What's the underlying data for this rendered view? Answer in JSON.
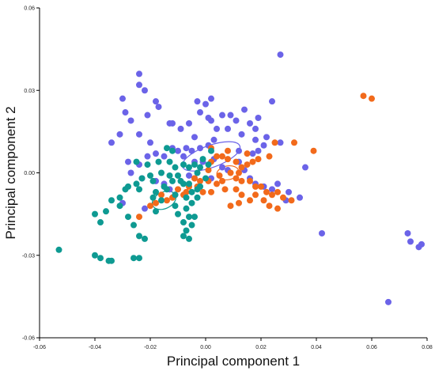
{
  "chart_data": {
    "type": "scatter",
    "xlabel": "Principal component 1",
    "ylabel": "Principal component 2",
    "xlim": [
      -0.06,
      0.08
    ],
    "ylim": [
      -0.06,
      0.06
    ],
    "xticks": [
      -0.06,
      -0.04,
      -0.02,
      0.0,
      0.02,
      0.04,
      0.06,
      0.08
    ],
    "xtick_labels": [
      "-0.06",
      "-0.04",
      "-0.02",
      "0.00",
      "0.02",
      "0.04",
      "0.06",
      "0.08"
    ],
    "yticks": [
      -0.06,
      -0.03,
      0.0,
      0.03,
      0.06
    ],
    "ytick_labels": [
      "-0.06",
      "-0.03",
      "0.00",
      "0.03",
      "0.06"
    ],
    "grid": false,
    "legend": "none",
    "series": [
      {
        "color": "#6b63e8",
        "points": [
          [
            0.027,
            0.043
          ],
          [
            -0.024,
            0.036
          ],
          [
            -0.024,
            0.032
          ],
          [
            -0.022,
            0.03
          ],
          [
            -0.018,
            0.026
          ],
          [
            -0.017,
            0.024
          ],
          [
            -0.03,
            0.027
          ],
          [
            -0.029,
            0.022
          ],
          [
            -0.027,
            0.019
          ],
          [
            -0.021,
            0.021
          ],
          [
            -0.031,
            0.014
          ],
          [
            -0.034,
            0.011
          ],
          [
            -0.024,
            0.014
          ],
          [
            -0.02,
            0.011
          ],
          [
            -0.013,
            0.018
          ],
          [
            -0.012,
            0.018
          ],
          [
            -0.009,
            0.016
          ],
          [
            -0.006,
            0.018
          ],
          [
            -0.004,
            0.013
          ],
          [
            -0.003,
            0.026
          ],
          [
            -0.002,
            0.022
          ],
          [
            0.0,
            0.025
          ],
          [
            0.002,
            0.027
          ],
          [
            0.001,
            0.02
          ],
          [
            0.002,
            0.019
          ],
          [
            0.004,
            0.016
          ],
          [
            0.006,
            0.021
          ],
          [
            0.009,
            0.021
          ],
          [
            0.008,
            0.016
          ],
          [
            0.011,
            0.019
          ],
          [
            0.014,
            0.023
          ],
          [
            0.016,
            0.018
          ],
          [
            0.019,
            0.02
          ],
          [
            0.018,
            0.016
          ],
          [
            0.013,
            0.014
          ],
          [
            0.018,
            0.012
          ],
          [
            0.024,
            0.026
          ],
          [
            0.022,
            0.013
          ],
          [
            0.027,
            0.011
          ],
          [
            0.021,
            0.01
          ],
          [
            0.019,
            0.008
          ],
          [
            0.017,
            0.007
          ],
          [
            0.012,
            0.008
          ],
          [
            0.003,
            0.012
          ],
          [
            0.001,
            0.01
          ],
          [
            -0.002,
            0.009
          ],
          [
            -0.005,
            0.008
          ],
          [
            -0.007,
            0.009
          ],
          [
            -0.008,
            0.006
          ],
          [
            -0.01,
            0.008
          ],
          [
            -0.012,
            0.009
          ],
          [
            -0.015,
            0.006
          ],
          [
            -0.018,
            0.007
          ],
          [
            -0.021,
            0.006
          ],
          [
            -0.024,
            0.003
          ],
          [
            -0.028,
            0.004
          ],
          [
            -0.027,
            0.0
          ],
          [
            -0.023,
            -0.002
          ],
          [
            -0.018,
            -0.003
          ],
          [
            -0.015,
            -0.004
          ],
          [
            -0.013,
            -0.006
          ],
          [
            -0.011,
            -0.008
          ],
          [
            -0.004,
            0.004
          ],
          [
            -0.001,
            0.004
          ],
          [
            0.003,
            0.005
          ],
          [
            0.006,
            0.002
          ],
          [
            0.008,
            0.001
          ],
          [
            0.012,
            0.004
          ],
          [
            0.014,
            0.001
          ],
          [
            0.016,
            -0.002
          ],
          [
            0.018,
            -0.004
          ],
          [
            0.021,
            -0.005
          ],
          [
            0.024,
            -0.006
          ],
          [
            0.026,
            -0.004
          ],
          [
            0.036,
            0.002
          ],
          [
            0.034,
            -0.009
          ],
          [
            0.042,
            -0.022
          ],
          [
            0.073,
            -0.022
          ],
          [
            0.074,
            -0.025
          ],
          [
            0.078,
            -0.026
          ],
          [
            0.077,
            -0.027
          ],
          [
            0.066,
            -0.047
          ],
          [
            -0.006,
            -0.001
          ],
          [
            -0.03,
            -0.011
          ],
          [
            -0.022,
            -0.013
          ],
          [
            0.03,
            -0.007
          ],
          [
            0.029,
            -0.01
          ],
          [
            -0.004,
            -0.002
          ],
          [
            0.002,
            -0.002
          ]
        ]
      },
      {
        "color": "#f26a1b",
        "points": [
          [
            0.057,
            0.028
          ],
          [
            0.06,
            0.027
          ],
          [
            0.039,
            0.008
          ],
          [
            0.032,
            0.011
          ],
          [
            0.025,
            0.011
          ],
          [
            0.023,
            0.006
          ],
          [
            0.019,
            0.005
          ],
          [
            0.017,
            0.004
          ],
          [
            0.015,
            0.003
          ],
          [
            0.013,
            0.002
          ],
          [
            0.011,
            0.004
          ],
          [
            0.008,
            0.005
          ],
          [
            0.006,
            0.006
          ],
          [
            0.004,
            0.006
          ],
          [
            0.002,
            0.009
          ],
          [
            0.002,
            0.004
          ],
          [
            0.001,
            0.001
          ],
          [
            0.005,
            -0.001
          ],
          [
            0.009,
            0.0
          ],
          [
            0.011,
            -0.002
          ],
          [
            0.013,
            -0.003
          ],
          [
            0.016,
            -0.003
          ],
          [
            0.018,
            -0.005
          ],
          [
            0.02,
            -0.005
          ],
          [
            0.022,
            -0.007
          ],
          [
            0.024,
            -0.008
          ],
          [
            0.026,
            -0.007
          ],
          [
            0.028,
            -0.009
          ],
          [
            0.023,
            -0.012
          ],
          [
            0.026,
            -0.013
          ],
          [
            0.018,
            -0.008
          ],
          [
            0.016,
            -0.01
          ],
          [
            0.013,
            -0.008
          ],
          [
            0.011,
            -0.006
          ],
          [
            0.012,
            -0.011
          ],
          [
            0.009,
            -0.012
          ],
          [
            0.007,
            -0.006
          ],
          [
            0.004,
            -0.004
          ],
          [
            0.001,
            -0.003
          ],
          [
            -0.002,
            -0.003
          ],
          [
            -0.004,
            -0.002
          ],
          [
            -0.006,
            -0.005
          ],
          [
            -0.007,
            -0.007
          ],
          [
            -0.008,
            -0.008
          ],
          [
            -0.01,
            -0.006
          ],
          [
            -0.012,
            -0.009
          ],
          [
            -0.014,
            -0.01
          ],
          [
            -0.016,
            -0.008
          ],
          [
            -0.018,
            -0.011
          ],
          [
            -0.02,
            -0.012
          ],
          [
            -0.024,
            -0.016
          ],
          [
            0.031,
            -0.01
          ],
          [
            0.021,
            -0.01
          ],
          [
            0.002,
            -0.007
          ],
          [
            -0.001,
            -0.007
          ],
          [
            0.012,
            0.0
          ],
          [
            0.015,
            0.007
          ],
          [
            -0.003,
            -0.005
          ],
          [
            0.006,
            -0.003
          ],
          [
            0.008,
            0.008
          ]
        ]
      },
      {
        "color": "#0e9a92",
        "points": [
          [
            -0.053,
            -0.028
          ],
          [
            -0.04,
            -0.03
          ],
          [
            -0.038,
            -0.031
          ],
          [
            -0.035,
            -0.032
          ],
          [
            -0.034,
            -0.032
          ],
          [
            -0.026,
            -0.031
          ],
          [
            -0.024,
            -0.031
          ],
          [
            -0.038,
            -0.018
          ],
          [
            -0.04,
            -0.015
          ],
          [
            -0.036,
            -0.014
          ],
          [
            -0.034,
            -0.01
          ],
          [
            -0.031,
            -0.012
          ],
          [
            -0.031,
            -0.009
          ],
          [
            -0.029,
            -0.006
          ],
          [
            -0.025,
            -0.004
          ],
          [
            -0.024,
            -0.006
          ],
          [
            -0.026,
            -0.019
          ],
          [
            -0.024,
            -0.023
          ],
          [
            -0.022,
            -0.024
          ],
          [
            -0.023,
            -0.002
          ],
          [
            -0.02,
            -0.001
          ],
          [
            -0.019,
            -0.003
          ],
          [
            -0.018,
            -0.007
          ],
          [
            -0.019,
            -0.009
          ],
          [
            -0.018,
            -0.014
          ],
          [
            -0.016,
            -0.01
          ],
          [
            -0.014,
            -0.006
          ],
          [
            -0.012,
            -0.003
          ],
          [
            -0.01,
            -0.001
          ],
          [
            -0.008,
            -0.004
          ],
          [
            -0.006,
            -0.004
          ],
          [
            -0.005,
            -0.007
          ],
          [
            -0.003,
            -0.006
          ],
          [
            -0.002,
            -0.005
          ],
          [
            -0.003,
            -0.009
          ],
          [
            -0.005,
            -0.011
          ],
          [
            -0.007,
            -0.009
          ],
          [
            -0.007,
            -0.013
          ],
          [
            -0.006,
            -0.016
          ],
          [
            -0.008,
            -0.018
          ],
          [
            -0.007,
            -0.021
          ],
          [
            -0.008,
            -0.023
          ],
          [
            -0.006,
            -0.024
          ],
          [
            -0.005,
            -0.019
          ],
          [
            -0.004,
            -0.016
          ],
          [
            -0.01,
            -0.015
          ],
          [
            -0.011,
            -0.012
          ],
          [
            -0.025,
            0.004
          ],
          [
            -0.021,
            0.003
          ],
          [
            -0.017,
            0.004
          ],
          [
            -0.013,
            0.004
          ],
          [
            -0.011,
            0.002
          ],
          [
            -0.008,
            0.003
          ],
          [
            -0.006,
            0.002
          ],
          [
            -0.004,
            0.003
          ],
          [
            -0.002,
            0.002
          ],
          [
            -0.001,
            0.005
          ],
          [
            0.001,
            0.003
          ],
          [
            0.002,
            0.008
          ],
          [
            -0.014,
            0.009
          ],
          [
            -0.012,
            0.008
          ],
          [
            -0.013,
            -0.001
          ],
          [
            -0.016,
            0.0
          ],
          [
            -0.028,
            -0.005
          ],
          [
            -0.028,
            -0.016
          ],
          [
            -0.011,
            -0.008
          ],
          [
            -0.009,
            -0.003
          ],
          [
            -0.003,
            0.0
          ],
          [
            0.0,
            -0.002
          ],
          [
            -0.015,
            -0.005
          ]
        ]
      }
    ],
    "ellipses": [
      {
        "color": "#6b63e8",
        "cx": 0.002,
        "cy": 0.006,
        "rx": 0.011,
        "ry": 0.004,
        "angle": -20
      },
      {
        "color": "#f26a1b",
        "cx": 0.008,
        "cy": 0.0,
        "rx": 0.004,
        "ry": 0.0025,
        "angle": -10
      },
      {
        "color": "#0e9a92",
        "cx": -0.015,
        "cy": -0.01,
        "rx": 0.0045,
        "ry": 0.003,
        "angle": -25
      }
    ]
  }
}
